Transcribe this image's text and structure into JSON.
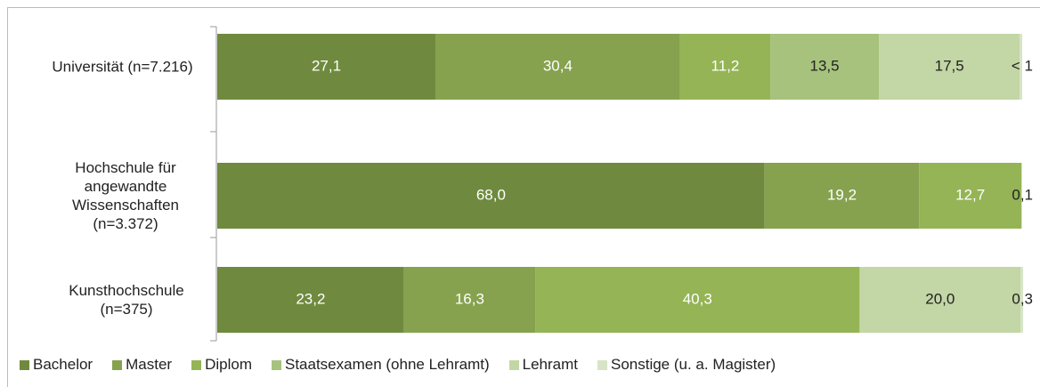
{
  "chart_data": {
    "type": "stacked_barh",
    "categories": [
      "Universität (n=7.216)",
      "Hochschule für angewandte Wissenschaften (n=3.372)",
      "Kunsthochschule (n=375)"
    ],
    "xlim": [
      0,
      100
    ],
    "series": [
      {
        "name": "Bachelor",
        "color": "#6f8a3e",
        "values": [
          27.1,
          68.0,
          23.2
        ],
        "value_labels": [
          "27,1",
          "68,0",
          "23,2"
        ]
      },
      {
        "name": "Master",
        "color": "#86a24f",
        "values": [
          30.4,
          19.2,
          16.3
        ],
        "value_labels": [
          "30,4",
          "19,2",
          "16,3"
        ]
      },
      {
        "name": "Diplom",
        "color": "#95b455",
        "values": [
          11.2,
          12.7,
          40.3
        ],
        "value_labels": [
          "11,2",
          "12,7",
          "40,3"
        ]
      },
      {
        "name": "Staatsexamen (ohne Lehramt)",
        "color": "#a6c27d",
        "values": [
          13.5,
          null,
          null
        ],
        "value_labels": [
          "13,5",
          null,
          null
        ]
      },
      {
        "name": "Lehramt",
        "color": "#c3d6a5",
        "values": [
          17.5,
          null,
          20.0
        ],
        "value_labels": [
          "17,5",
          null,
          "20,0"
        ]
      },
      {
        "name": "Sonstige (u. a. Magister)",
        "color": "#d7e4c6",
        "values": [
          0.3,
          0.1,
          0.3
        ],
        "value_labels": [
          "< 1",
          "0,1",
          "0,3"
        ]
      }
    ]
  }
}
